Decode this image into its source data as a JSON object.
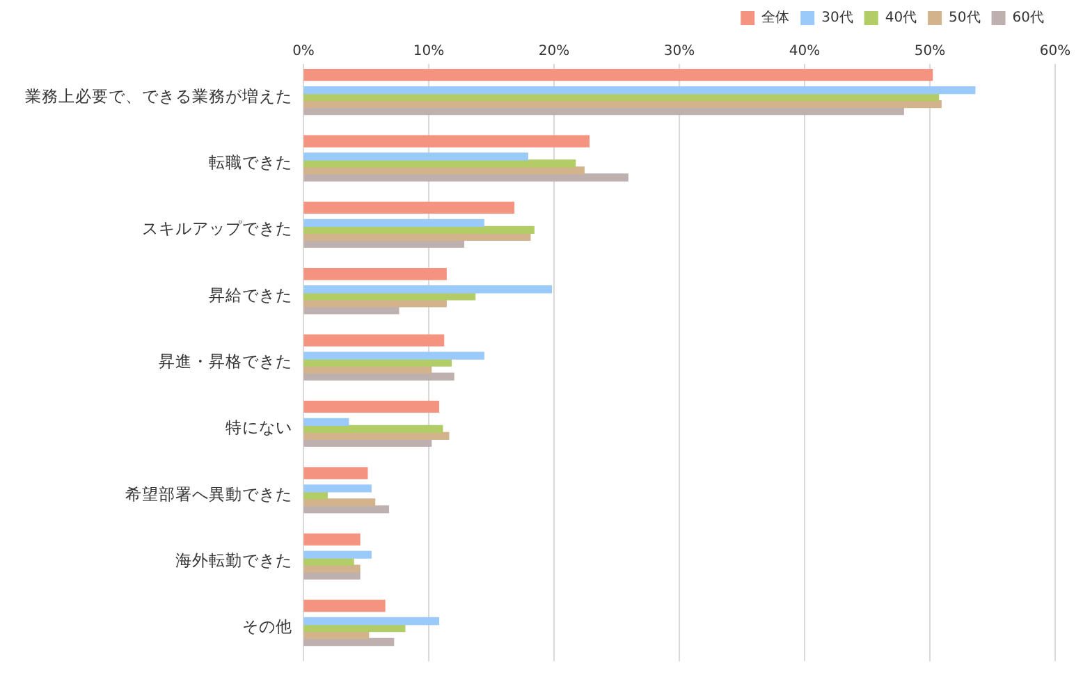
{
  "chart_data": {
    "type": "bar",
    "orientation": "horizontal",
    "categories": [
      "業務上必要で、できる業務が増えた",
      "転職できた",
      "スキルアップできた",
      "昇給できた",
      "昇進・昇格できた",
      "特にない",
      "希望部署へ異動できた",
      "海外転勤できた",
      "その他"
    ],
    "series": [
      {
        "name": "全体",
        "color": "#f4937f",
        "values": [
          50.2,
          22.8,
          16.8,
          11.4,
          11.2,
          10.8,
          5.1,
          4.5,
          6.5
        ]
      },
      {
        "name": "30代",
        "color": "#99caf9",
        "values": [
          53.6,
          17.9,
          14.4,
          19.8,
          14.4,
          3.6,
          5.4,
          5.4,
          10.8
        ]
      },
      {
        "name": "40代",
        "color": "#b2cc66",
        "values": [
          50.7,
          21.7,
          18.4,
          13.7,
          11.8,
          11.1,
          1.9,
          4.0,
          8.1
        ]
      },
      {
        "name": "50代",
        "color": "#d2b38b",
        "values": [
          50.9,
          22.4,
          18.1,
          11.4,
          10.2,
          11.6,
          5.7,
          4.5,
          5.2
        ]
      },
      {
        "name": "60代",
        "color": "#bfb0b0",
        "values": [
          47.9,
          25.9,
          12.8,
          7.6,
          12.0,
          10.2,
          6.8,
          4.5,
          7.2
        ]
      }
    ],
    "xlim": [
      0,
      60
    ],
    "xticks": [
      {
        "value": 0,
        "label": "0%"
      },
      {
        "value": 10,
        "label": "10%"
      },
      {
        "value": 20,
        "label": "20%"
      },
      {
        "value": 30,
        "label": "30%"
      },
      {
        "value": 40,
        "label": "40%"
      },
      {
        "value": 50,
        "label": "50%"
      },
      {
        "value": 60,
        "label": "60%"
      }
    ],
    "grid": "x",
    "legend": "top right"
  }
}
